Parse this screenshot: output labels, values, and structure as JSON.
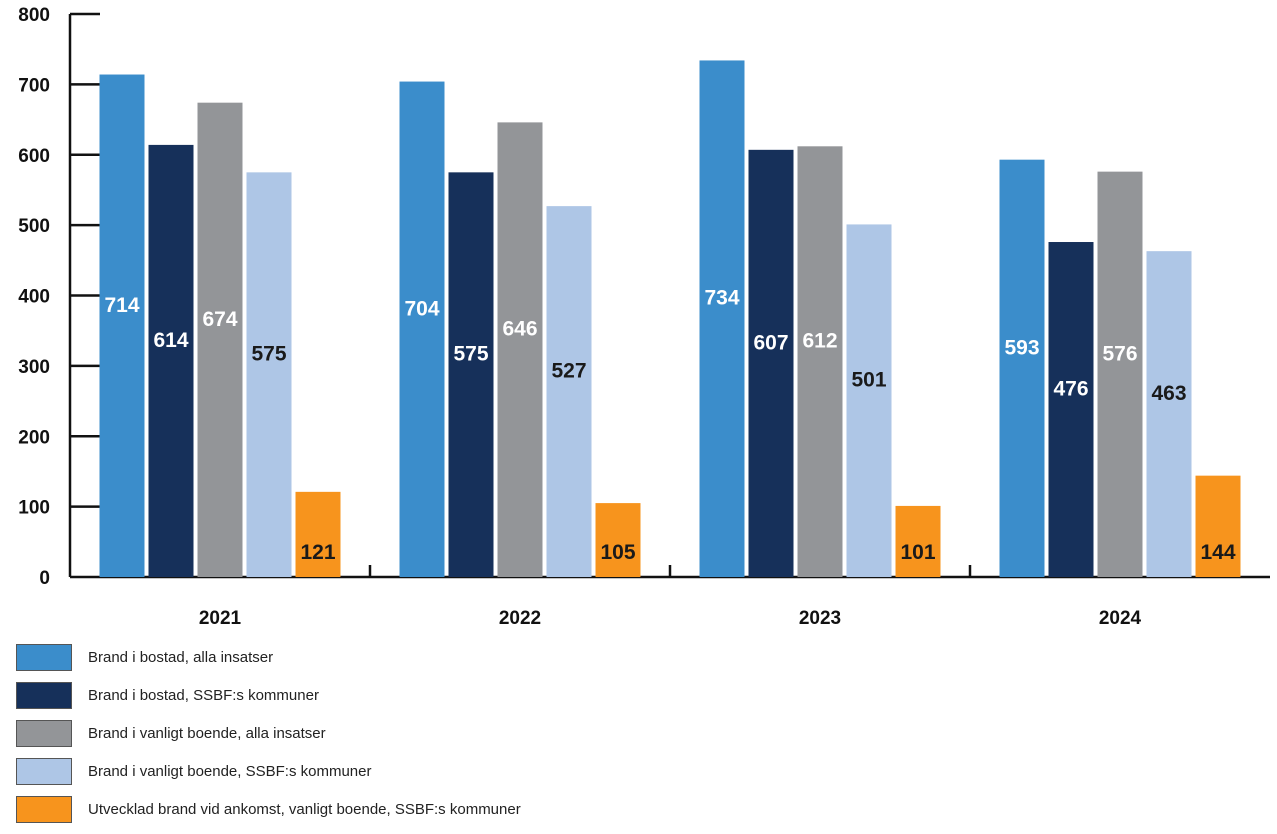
{
  "chart_data": {
    "type": "bar",
    "categories": [
      "2021",
      "2022",
      "2023",
      "2024"
    ],
    "series": [
      {
        "name": "Brand i bostad, alla insatser",
        "color": "#3b8dcb",
        "label_color": "#ffffff",
        "values": [
          714,
          704,
          734,
          593
        ]
      },
      {
        "name": "Brand i bostad, SSBF:s kommuner",
        "color": "#16305a",
        "label_color": "#ffffff",
        "values": [
          614,
          575,
          607,
          476
        ]
      },
      {
        "name": "Brand i vanligt boende, alla insatser",
        "color": "#939598",
        "label_color": "#ffffff",
        "values": [
          674,
          646,
          612,
          576
        ]
      },
      {
        "name": "Brand i vanligt boende, SSBF:s kommuner",
        "color": "#aec6e6",
        "label_color": "#1a1a1a",
        "values": [
          575,
          527,
          501,
          463
        ]
      },
      {
        "name": "Utvecklad brand vid ankomst, vanligt boende, SSBF:s kommuner",
        "color": "#f7941d",
        "label_color": "#1a1a1a",
        "values": [
          121,
          105,
          101,
          144
        ]
      }
    ],
    "yticks": [
      "0",
      "100",
      "200",
      "300",
      "400",
      "500",
      "600",
      "700",
      "800"
    ],
    "ylim": [
      0,
      800
    ],
    "grid": false,
    "legend_position": "bottom-left"
  }
}
